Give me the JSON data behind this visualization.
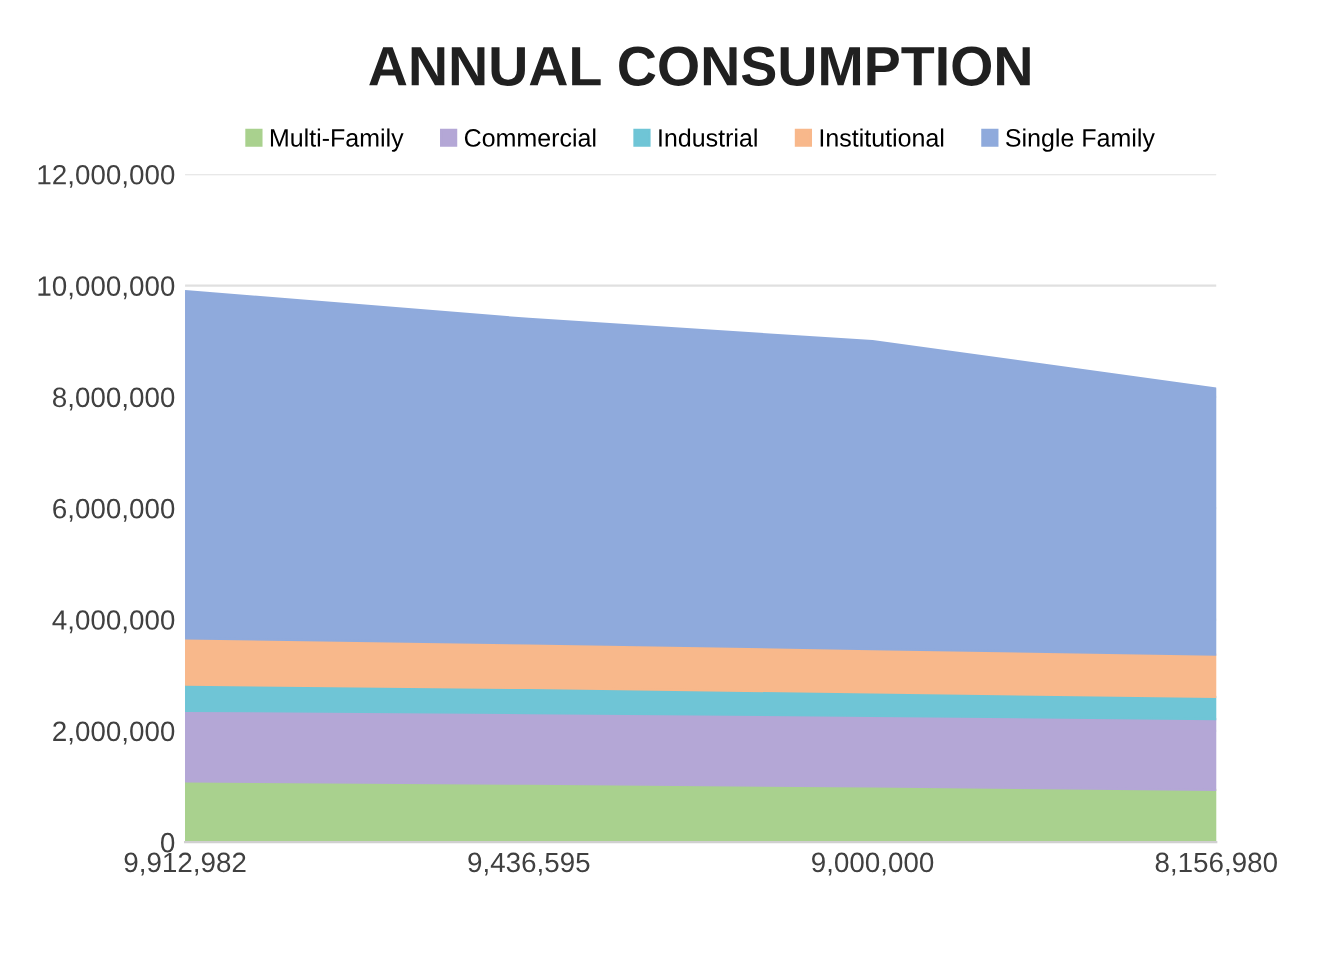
{
  "chart_data": {
    "type": "area",
    "stacked": true,
    "title": "ANNUAL CONSUMPTION",
    "categories": [
      "9,912,982",
      "9,436,595",
      "9,000,000",
      "8,156,980"
    ],
    "series": [
      {
        "name": "Multi-Family",
        "color": "#a9d18e",
        "values": [
          1090000,
          1050000,
          1000000,
          940000
        ]
      },
      {
        "name": "Commercial",
        "color": "#b4a7d6",
        "values": [
          1270000,
          1270000,
          1270000,
          1270000
        ]
      },
      {
        "name": "Industrial",
        "color": "#6fc5d6",
        "values": [
          470000,
          450000,
          420000,
          400000
        ]
      },
      {
        "name": "Institutional",
        "color": "#f8b88b",
        "values": [
          830000,
          800000,
          780000,
          760000
        ]
      },
      {
        "name": "Single Family",
        "color": "#8faadc",
        "values": [
          6240000,
          5830000,
          5530000,
          4780000
        ]
      }
    ],
    "ylim": [
      0,
      12000000
    ],
    "yticks": [
      {
        "value": 0,
        "label": "0"
      },
      {
        "value": 2000000,
        "label": "2,000,000"
      },
      {
        "value": 4000000,
        "label": "4,000,000"
      },
      {
        "value": 6000000,
        "label": "6,000,000"
      },
      {
        "value": 8000000,
        "label": "8,000,000"
      },
      {
        "value": 10000000,
        "label": "10,000,000"
      },
      {
        "value": 12000000,
        "label": "12,000,000"
      }
    ],
    "grid": "y",
    "legend": "top"
  }
}
